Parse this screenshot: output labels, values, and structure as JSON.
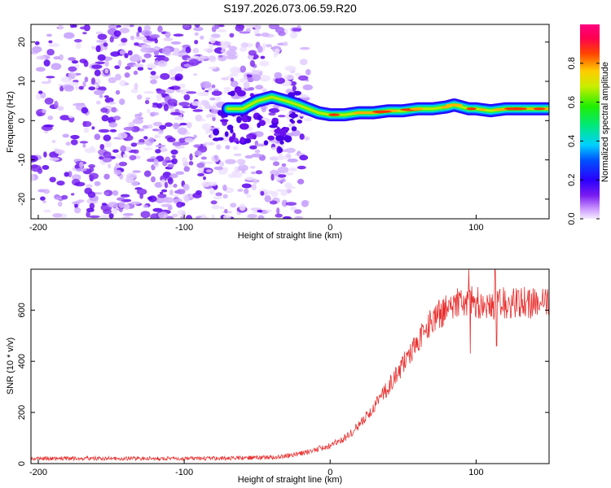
{
  "title": "S197.2026.073.06.59.R20",
  "chart_data": [
    {
      "type": "heatmap",
      "xlabel": "Height of straight line (km)",
      "ylabel": "Frequency (Hz)",
      "xlim": [
        -205,
        150
      ],
      "ylim": [
        -25,
        24.5
      ],
      "xticks": [
        -200,
        -100,
        0,
        100
      ],
      "yticks": [
        -20,
        -10,
        0,
        10,
        20
      ],
      "ridge": {
        "x": [
          -70,
          -60,
          -50,
          -40,
          -30,
          -22,
          -15,
          -8,
          0,
          10,
          20,
          30,
          40,
          50,
          60,
          70,
          80,
          85,
          90,
          95,
          100,
          110,
          120,
          130,
          140,
          150
        ],
        "freq": [
          3,
          3,
          5,
          6,
          5,
          4,
          3,
          2,
          1.5,
          1.5,
          2,
          2,
          2.5,
          2.5,
          3,
          3,
          3.5,
          4,
          3.5,
          3,
          3,
          2.5,
          3,
          3,
          3,
          3
        ]
      },
      "colorbar": {
        "label": "Normalized spectral amplitude",
        "range": [
          0,
          1
        ],
        "ticks": [
          0.0,
          0.2,
          0.4,
          0.6,
          0.8
        ]
      }
    },
    {
      "type": "line",
      "xlabel": "Height of straight line (km)",
      "ylabel": "SNR (10 * v/v)",
      "xlim": [
        -205,
        150
      ],
      "ylim": [
        0,
        760
      ],
      "xticks": [
        -200,
        -100,
        0,
        100
      ],
      "yticks": [
        0,
        200,
        400,
        600
      ],
      "color": "#e8302f",
      "series": [
        {
          "name": "SNR",
          "x": [
            -205,
            -150,
            -100,
            -60,
            -40,
            -30,
            -20,
            -10,
            0,
            10,
            20,
            30,
            40,
            50,
            60,
            70,
            80,
            90,
            95,
            100,
            110,
            120,
            130,
            140,
            150
          ],
          "y": [
            20,
            20,
            20,
            22,
            25,
            30,
            40,
            55,
            70,
            100,
            150,
            220,
            300,
            390,
            480,
            560,
            610,
            630,
            640,
            630,
            620,
            630,
            630,
            625,
            630
          ]
        }
      ],
      "events": [
        {
          "x": 95,
          "y": 760
        },
        {
          "x": 96,
          "y": 430
        },
        {
          "x": 113,
          "y": 760
        },
        {
          "x": 114,
          "y": 460
        }
      ]
    }
  ]
}
